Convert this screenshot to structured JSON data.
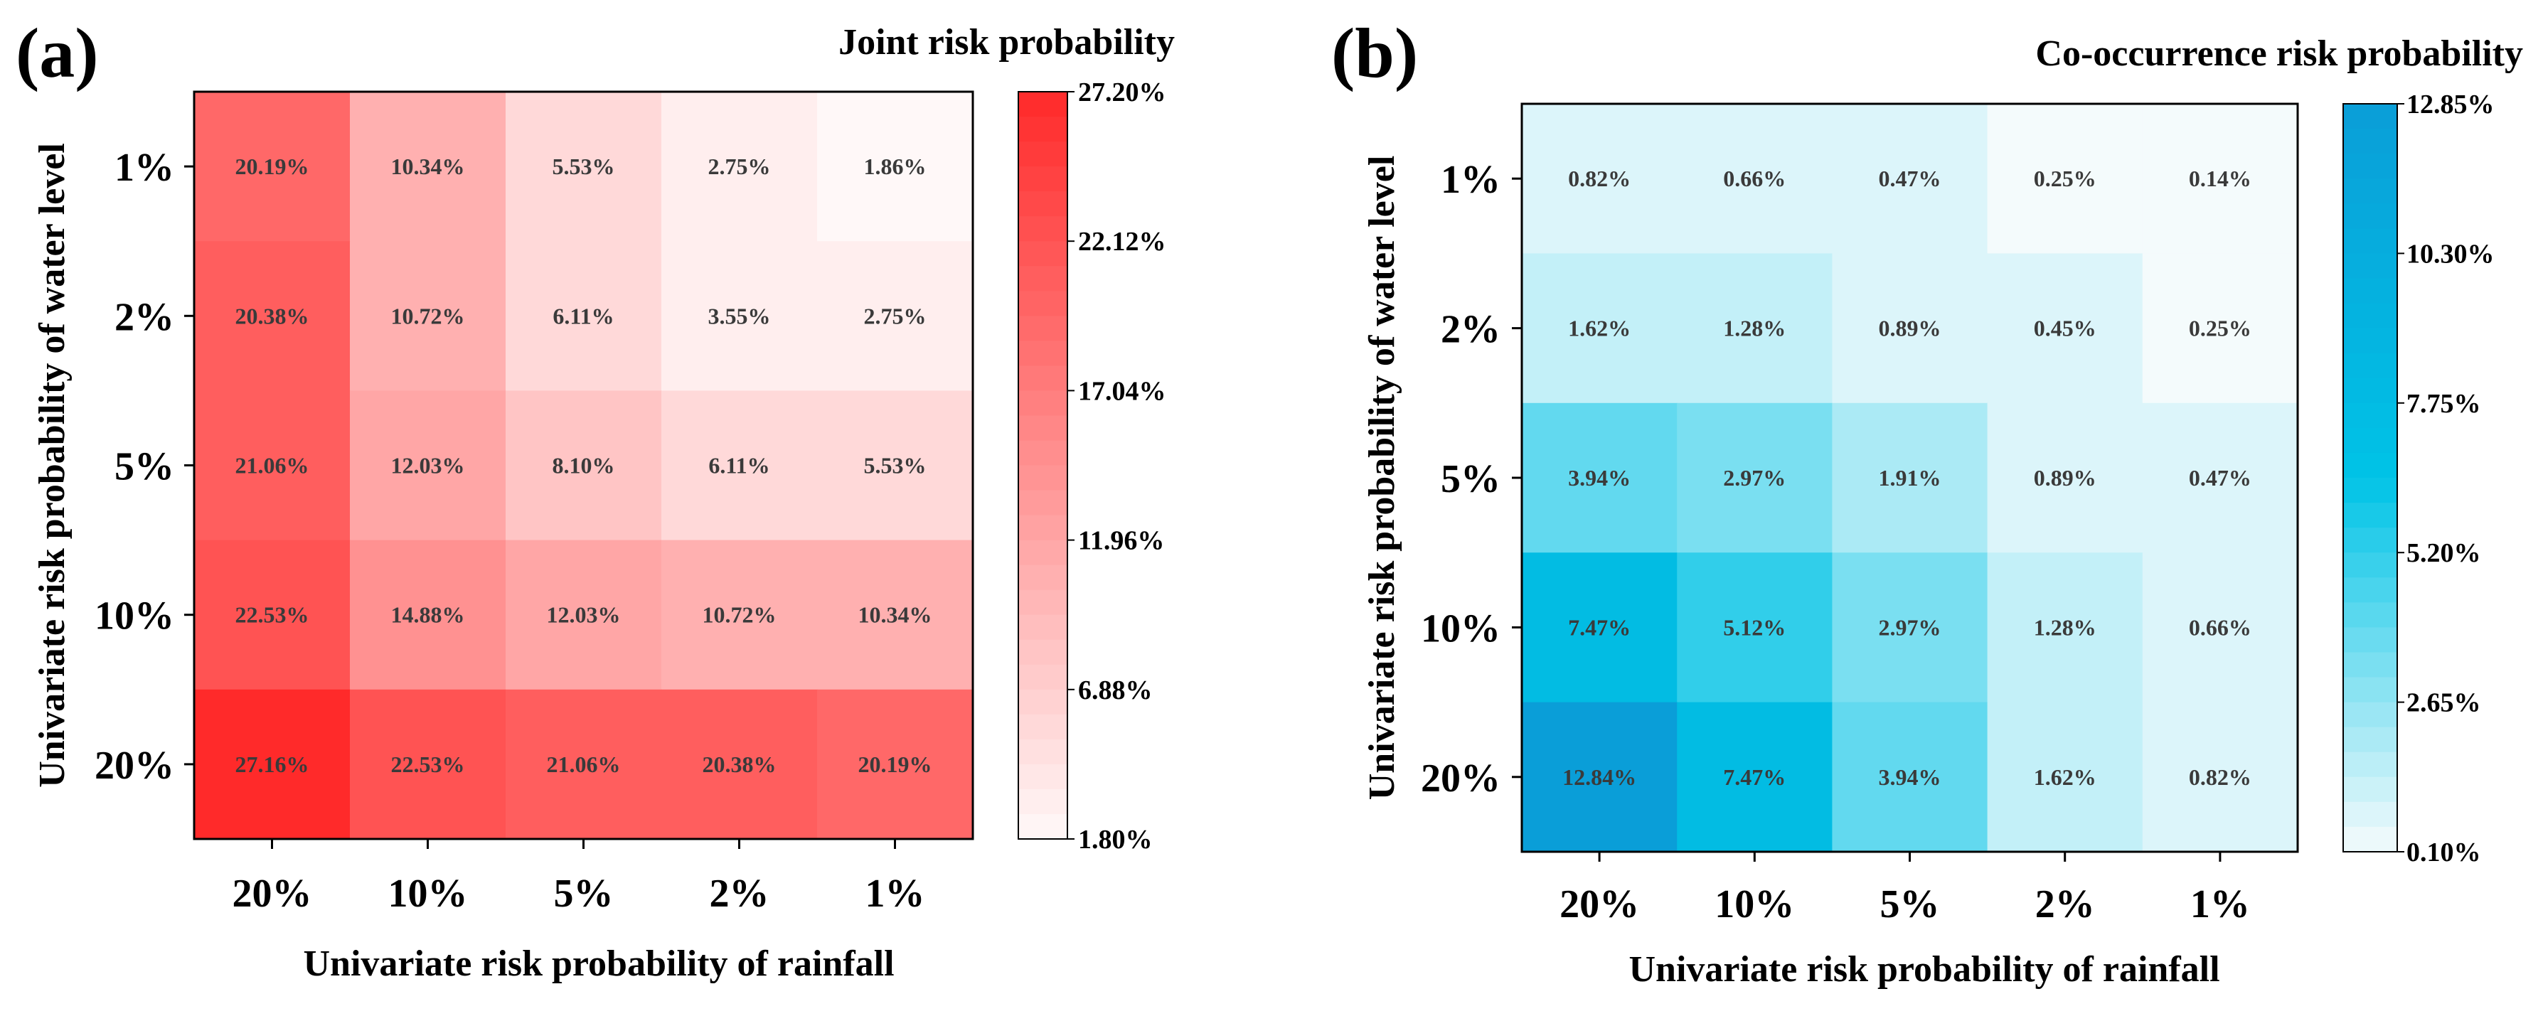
{
  "chart_data": [
    {
      "type": "heatmap",
      "panel_label": "(a)",
      "title": "Joint risk probability",
      "xlabel": "Univariate risk probability of rainfall",
      "ylabel": "Univariate risk probability of water level",
      "x_categories": [
        "20%",
        "10%",
        "5%",
        "2%",
        "1%"
      ],
      "y_categories": [
        "1%",
        "2%",
        "5%",
        "10%",
        "20%"
      ],
      "values": [
        [
          20.19,
          10.34,
          5.53,
          2.75,
          1.86
        ],
        [
          20.38,
          10.72,
          6.11,
          3.55,
          2.75
        ],
        [
          21.06,
          12.03,
          8.1,
          6.11,
          5.53
        ],
        [
          22.53,
          14.88,
          12.03,
          10.72,
          10.34
        ],
        [
          27.16,
          22.53,
          21.06,
          20.38,
          20.19
        ]
      ],
      "cell_labels": [
        [
          "20.19%",
          "10.34%",
          "5.53%",
          "2.75%",
          "1.86%"
        ],
        [
          "20.38%",
          "10.72%",
          "6.11%",
          "3.55%",
          "2.75%"
        ],
        [
          "21.06%",
          "12.03%",
          "8.10%",
          "6.11%",
          "5.53%"
        ],
        [
          "22.53%",
          "14.88%",
          "12.03%",
          "10.72%",
          "10.34%"
        ],
        [
          "27.16%",
          "22.53%",
          "21.06%",
          "20.38%",
          "20.19%"
        ]
      ],
      "colorbar": {
        "min": 1.8,
        "max": 27.2,
        "ticks": [
          "27.20%",
          "22.12%",
          "17.04%",
          "11.96%",
          "6.88%",
          "1.80%"
        ],
        "low_color": "#fff8f8",
        "high_color": "#ff2a2a"
      }
    },
    {
      "type": "heatmap",
      "panel_label": "(b)",
      "title": "Co-occurrence risk probability",
      "xlabel": "Univariate risk probability of rainfall",
      "ylabel": "Univariate risk probability of water level",
      "x_categories": [
        "20%",
        "10%",
        "5%",
        "2%",
        "1%"
      ],
      "y_categories": [
        "1%",
        "2%",
        "5%",
        "10%",
        "20%"
      ],
      "values": [
        [
          0.82,
          0.66,
          0.47,
          0.25,
          0.14
        ],
        [
          1.62,
          1.28,
          0.89,
          0.45,
          0.25
        ],
        [
          3.94,
          2.97,
          1.91,
          0.89,
          0.47
        ],
        [
          7.47,
          5.12,
          2.97,
          1.28,
          0.66
        ],
        [
          12.84,
          7.47,
          3.94,
          1.62,
          0.82
        ]
      ],
      "cell_labels": [
        [
          "0.82%",
          "0.66%",
          "0.47%",
          "0.25%",
          "0.14%"
        ],
        [
          "1.62%",
          "1.28%",
          "0.89%",
          "0.45%",
          "0.25%"
        ],
        [
          "3.94%",
          "2.97%",
          "1.91%",
          "0.89%",
          "0.47%"
        ],
        [
          "7.47%",
          "5.12%",
          "2.97%",
          "1.28%",
          "0.66%"
        ],
        [
          "12.84%",
          "7.47%",
          "3.94%",
          "1.62%",
          "0.82%"
        ]
      ],
      "colorbar": {
        "min": 0.1,
        "max": 12.85,
        "ticks": [
          "12.85%",
          "10.30%",
          "7.75%",
          "5.20%",
          "2.65%",
          "0.10%"
        ],
        "low_color": "#f4fbfc",
        "mid_color": "#00c3e6",
        "high_color": "#0a9ed8"
      }
    }
  ]
}
